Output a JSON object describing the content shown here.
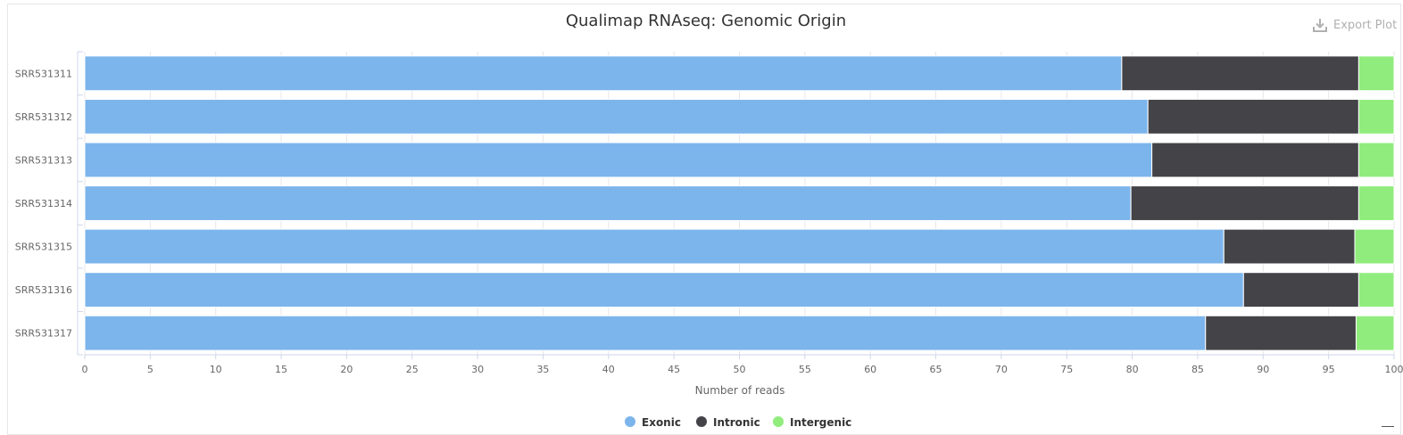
{
  "export": {
    "label": "Export Plot",
    "icon": "download-icon"
  },
  "chart_data": {
    "type": "bar",
    "orientation": "horizontal",
    "stacked": true,
    "stacking": "percent",
    "title": "Qualimap RNAseq: Genomic Origin",
    "xlabel": "Number of reads",
    "ylabel": "",
    "xlim": [
      0,
      100
    ],
    "xticks": [
      0,
      5,
      10,
      15,
      20,
      25,
      30,
      35,
      40,
      45,
      50,
      55,
      60,
      65,
      70,
      75,
      80,
      85,
      90,
      95,
      100
    ],
    "grid": true,
    "legend_position": "bottom-center",
    "categories": [
      "SRR531311",
      "SRR531312",
      "SRR531313",
      "SRR531314",
      "SRR531315",
      "SRR531316",
      "SRR531317"
    ],
    "series": [
      {
        "name": "Exonic",
        "color": "#7cb5ec",
        "values": [
          79.2,
          81.2,
          81.5,
          79.9,
          87.0,
          88.5,
          85.6
        ]
      },
      {
        "name": "Intronic",
        "color": "#434348",
        "values": [
          18.1,
          16.1,
          15.8,
          17.4,
          10.0,
          8.8,
          11.5
        ]
      },
      {
        "name": "Intergenic",
        "color": "#90ed7d",
        "values": [
          2.7,
          2.7,
          2.7,
          2.7,
          3.0,
          2.7,
          2.9
        ]
      }
    ]
  }
}
